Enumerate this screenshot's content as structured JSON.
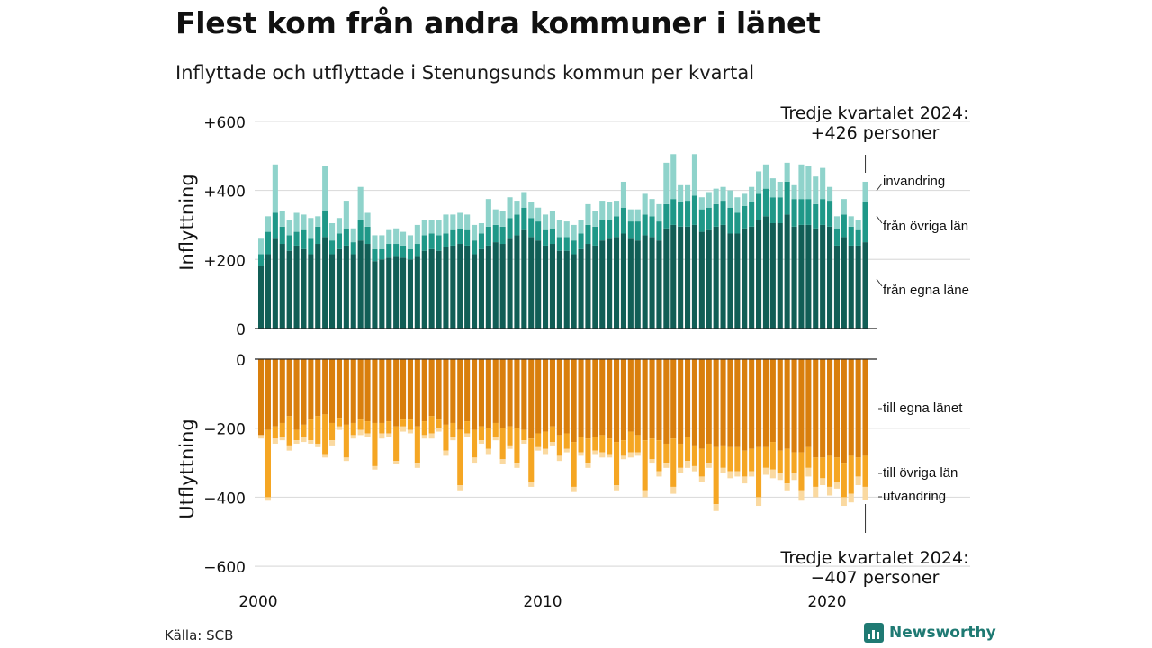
{
  "header": {
    "title": "Flest kom från andra kommuner i länet",
    "subtitle": "Inflyttade och utflyttade i Stenungsunds kommun per kvartal"
  },
  "footer": {
    "source": "Källa: SCB",
    "logo_text": "Newsworthy"
  },
  "colors": {
    "in_egna": "#115e56",
    "in_ovriga": "#1f9888",
    "in_invandring": "#8fd3cb",
    "ut_egna": "#d97f0d",
    "ut_ovriga": "#f5a623",
    "ut_utvandring": "#fad9a0",
    "grid": "#dddddd",
    "text": "#111111",
    "brand": "#1f7a73"
  },
  "chart_data": {
    "type": "bar",
    "stacked": true,
    "start": "2000 Q1",
    "frequency": "quarterly",
    "x_tick_labels": [
      "2000",
      "2010",
      "2020"
    ],
    "inflow": {
      "ylabel": "Inflyttning",
      "ylim": [
        0,
        600
      ],
      "y_ticks": [
        600,
        400,
        200,
        0
      ],
      "y_tick_labels": [
        "+600",
        "+400",
        "+200",
        "0"
      ],
      "series": [
        {
          "name": "från egna läne",
          "values": [
            180,
            215,
            260,
            245,
            225,
            240,
            230,
            215,
            245,
            265,
            215,
            230,
            240,
            215,
            255,
            245,
            195,
            200,
            205,
            210,
            205,
            200,
            210,
            225,
            230,
            225,
            235,
            240,
            245,
            240,
            215,
            230,
            240,
            250,
            245,
            260,
            270,
            285,
            265,
            255,
            240,
            245,
            225,
            225,
            215,
            230,
            245,
            240,
            255,
            260,
            265,
            275,
            260,
            255,
            270,
            265,
            255,
            290,
            300,
            295,
            295,
            300,
            280,
            285,
            295,
            300,
            275,
            275,
            290,
            295,
            315,
            325,
            305,
            305,
            330,
            295,
            300,
            300,
            290,
            300,
            295,
            240,
            265,
            240,
            240,
            250
          ]
        },
        {
          "name": "från övriga län",
          "values": [
            35,
            65,
            75,
            50,
            45,
            40,
            55,
            45,
            50,
            75,
            40,
            45,
            50,
            35,
            60,
            50,
            35,
            30,
            40,
            35,
            35,
            30,
            35,
            45,
            45,
            45,
            40,
            45,
            45,
            45,
            40,
            45,
            55,
            50,
            50,
            60,
            60,
            65,
            55,
            55,
            45,
            45,
            40,
            40,
            40,
            45,
            55,
            55,
            60,
            55,
            60,
            75,
            50,
            55,
            60,
            60,
            55,
            70,
            75,
            70,
            75,
            85,
            65,
            65,
            65,
            70,
            75,
            60,
            65,
            70,
            75,
            80,
            75,
            75,
            95,
            80,
            75,
            75,
            70,
            75,
            75,
            50,
            65,
            55,
            45,
            115
          ]
        },
        {
          "name": "invandring",
          "values": [
            45,
            45,
            140,
            45,
            45,
            55,
            45,
            60,
            30,
            130,
            50,
            45,
            80,
            40,
            95,
            40,
            40,
            40,
            40,
            45,
            40,
            40,
            55,
            45,
            40,
            45,
            55,
            45,
            45,
            45,
            45,
            30,
            80,
            45,
            45,
            60,
            40,
            45,
            45,
            40,
            45,
            50,
            50,
            45,
            45,
            40,
            60,
            45,
            55,
            50,
            45,
            75,
            35,
            35,
            60,
            50,
            50,
            120,
            130,
            50,
            45,
            120,
            35,
            45,
            45,
            40,
            50,
            45,
            35,
            45,
            65,
            70,
            55,
            45,
            55,
            40,
            100,
            95,
            80,
            90,
            40,
            35,
            45,
            30,
            30,
            60
          ]
        }
      ]
    },
    "outflow": {
      "ylabel": "Utflyttning",
      "ylim": [
        -600,
        0
      ],
      "y_ticks": [
        0,
        -200,
        -400,
        -600
      ],
      "y_tick_labels": [
        "0",
        "−200",
        "−400",
        "−600"
      ],
      "series": [
        {
          "name": "till egna länet",
          "values": [
            -220,
            -205,
            -195,
            -185,
            -165,
            -205,
            -190,
            -175,
            -165,
            -160,
            -185,
            -170,
            -190,
            -185,
            -175,
            -180,
            -185,
            -185,
            -180,
            -195,
            -175,
            -175,
            -195,
            -180,
            -165,
            -175,
            -190,
            -185,
            -205,
            -180,
            -205,
            -195,
            -200,
            -185,
            -200,
            -195,
            -200,
            -205,
            -230,
            -215,
            -210,
            -195,
            -220,
            -215,
            -240,
            -225,
            -230,
            -225,
            -220,
            -230,
            -240,
            -235,
            -210,
            -220,
            -235,
            -230,
            -235,
            -245,
            -230,
            -245,
            -225,
            -250,
            -260,
            -245,
            -255,
            -250,
            -255,
            -255,
            -265,
            -260,
            -255,
            -255,
            -240,
            -265,
            -260,
            -270,
            -270,
            -255,
            -285,
            -285,
            -280,
            -285,
            -300,
            -280,
            -285,
            -280
          ]
        },
        {
          "name": "till övriga län",
          "values": [
            0,
            -195,
            -35,
            -40,
            -85,
            -30,
            -35,
            -60,
            -80,
            -115,
            -50,
            -25,
            -95,
            -35,
            -30,
            -35,
            -125,
            -30,
            -35,
            -100,
            -20,
            -30,
            -105,
            -40,
            -50,
            -25,
            -75,
            -40,
            -160,
            -35,
            -80,
            -40,
            -60,
            -40,
            -90,
            -55,
            -100,
            -30,
            -125,
            -40,
            -50,
            -45,
            -60,
            -45,
            -130,
            -45,
            -70,
            -40,
            -50,
            -45,
            -125,
            -45,
            -60,
            -50,
            -145,
            -60,
            -90,
            -55,
            -140,
            -70,
            -70,
            -60,
            -80,
            -55,
            -165,
            -65,
            -70,
            -70,
            -75,
            -65,
            -145,
            -60,
            -80,
            -65,
            -100,
            -60,
            -110,
            -60,
            -85,
            -60,
            -90,
            -70,
            -100,
            -110,
            -55,
            -90
          ]
        },
        {
          "name": "utvandring",
          "values": [
            -10,
            -10,
            -15,
            -10,
            -15,
            -10,
            -15,
            -10,
            -10,
            -10,
            -15,
            -10,
            -10,
            -10,
            -15,
            -10,
            -10,
            -15,
            -10,
            -10,
            -15,
            -10,
            -15,
            -10,
            -15,
            -10,
            -15,
            -10,
            -15,
            -10,
            -15,
            -10,
            -15,
            -10,
            -15,
            -10,
            -15,
            -10,
            -15,
            -10,
            -15,
            -10,
            -15,
            -10,
            -15,
            -10,
            -15,
            -10,
            -15,
            -10,
            -15,
            -10,
            -15,
            -10,
            -20,
            -10,
            -15,
            -15,
            -20,
            -15,
            -20,
            -15,
            -15,
            -15,
            -20,
            -15,
            -20,
            -15,
            -20,
            -15,
            -25,
            -20,
            -25,
            -20,
            -20,
            -20,
            -30,
            -25,
            -30,
            -20,
            -25,
            -20,
            -25,
            -25,
            -25,
            -37
          ]
        }
      ]
    },
    "annotations": {
      "inflow_latest": "Tredje kvartalet 2024:\n+426 personer",
      "outflow_latest": "Tredje kvartalet 2024:\n−407 personer"
    }
  }
}
